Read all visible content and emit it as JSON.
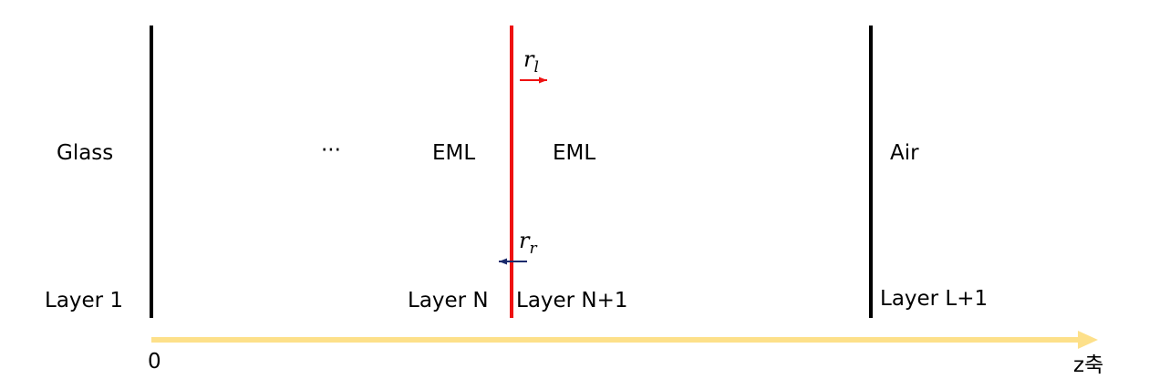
{
  "diagram": {
    "labels": {
      "glass": "Glass",
      "ellipsis": "···",
      "eml_left": "EML",
      "eml_right": "EML",
      "air": "Air",
      "layer_1": "Layer 1",
      "layer_n": "Layer N",
      "layer_n_plus_1": "Layer N+1",
      "layer_l_plus_1": "Layer L+1",
      "axis_origin": "0",
      "axis_label": "z축"
    },
    "reflections": {
      "left": {
        "symbol": "r",
        "subscript": "l"
      },
      "right": {
        "symbol": "r",
        "subscript": "r"
      }
    },
    "colors": {
      "boundary": "#000000",
      "emitter_plane": "#ee1111",
      "arrow_left_reflection": "#ee1111",
      "arrow_right_reflection": "#1a2a6c",
      "axis": "#fde08a"
    }
  }
}
